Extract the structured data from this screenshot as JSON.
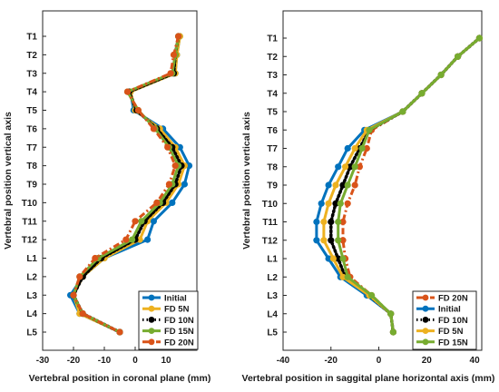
{
  "chart_data": [
    {
      "type": "line",
      "xlabel": "Vertebral position in coronal plane (mm)",
      "ylabel": "Vertebral position vertical axis",
      "xlim": [
        -30,
        20
      ],
      "xticks": [
        "-30",
        "-20",
        "-10",
        "0",
        "10"
      ],
      "categories": [
        "T1",
        "T2",
        "T3",
        "T4",
        "T5",
        "T6",
        "T7",
        "T8",
        "T9",
        "T10",
        "T11",
        "T12",
        "L1",
        "L2",
        "L3",
        "L4",
        "L5"
      ],
      "legend_position": "bottom-right",
      "series": [
        {
          "name": "Initial",
          "color": "#0072BD",
          "style": "solid",
          "values": [
            14.5,
            13.5,
            13,
            -1.5,
            -0.5,
            9,
            14.5,
            17.5,
            16,
            12,
            6,
            4,
            -10,
            -17,
            -21,
            -18,
            -5
          ]
        },
        {
          "name": "FD 5N",
          "color": "#EDB120",
          "style": "solid",
          "values": [
            14.5,
            13.5,
            13,
            -1.5,
            0,
            8,
            13,
            16,
            14,
            10,
            4,
            1.5,
            -10,
            -17,
            -20,
            -18,
            -5
          ]
        },
        {
          "name": "FD 10N",
          "color": "#000000",
          "style": "dotted",
          "values": [
            14,
            13,
            12.5,
            -2,
            0.5,
            7,
            12,
            15,
            13,
            9,
            3,
            0,
            -11,
            -17,
            -20,
            -17,
            -5
          ]
        },
        {
          "name": "FD 15N",
          "color": "#77AC30",
          "style": "solid",
          "values": [
            14,
            13,
            12,
            -2.5,
            1,
            6.5,
            11,
            14,
            12,
            8,
            2,
            -1,
            -12,
            -18,
            -20,
            -17,
            -5
          ]
        },
        {
          "name": "FD 20N",
          "color": "#D95319",
          "style": "dashdot",
          "values": [
            14,
            12.5,
            11.5,
            -2.5,
            1,
            6,
            10.5,
            13,
            11,
            7,
            0,
            -3,
            -13,
            -18,
            -20,
            -17,
            -5
          ]
        }
      ]
    },
    {
      "type": "line",
      "xlabel": "Vertebral position in saggital plane horizontal axis (mm)",
      "ylabel": "Vertebral position vertical axis",
      "xlim": [
        -40,
        43
      ],
      "xticks": [
        "-40",
        "-20",
        "0",
        "20",
        "40"
      ],
      "categories": [
        "T1",
        "T2",
        "T3",
        "T4",
        "T5",
        "T6",
        "T7",
        "T8",
        "T9",
        "T10",
        "T11",
        "T12",
        "L1",
        "L2",
        "L3",
        "L4",
        "L5"
      ],
      "legend_position": "bottom-right",
      "series": [
        {
          "name": "FD 20N",
          "color": "#D95319",
          "style": "dashdot",
          "values": [
            42,
            33,
            26,
            18,
            10,
            -3,
            -5,
            -8,
            -10,
            -13,
            -15,
            -15,
            -14,
            -12,
            -3,
            5,
            6
          ]
        },
        {
          "name": "Initial",
          "color": "#0072BD",
          "style": "solid",
          "values": [
            42,
            33,
            26,
            18,
            10,
            -6,
            -13,
            -17,
            -21,
            -24,
            -26,
            -26,
            -21,
            -16,
            -5,
            5,
            6
          ]
        },
        {
          "name": "FD 10N",
          "color": "#000000",
          "style": "dotted",
          "values": [
            42,
            33,
            26,
            18,
            10,
            -4,
            -8,
            -12,
            -15,
            -18,
            -20,
            -20,
            -17,
            -14,
            -4,
            5,
            6
          ]
        },
        {
          "name": "FD 5N",
          "color": "#EDB120",
          "style": "solid",
          "values": [
            42,
            33,
            26,
            18,
            10,
            -5,
            -10,
            -14,
            -18,
            -21,
            -23,
            -23,
            -19,
            -15,
            -4,
            5,
            6
          ]
        },
        {
          "name": "FD 15N",
          "color": "#77AC30",
          "style": "solid",
          "values": [
            42,
            33,
            26,
            18,
            10,
            -4,
            -7,
            -10,
            -13,
            -16,
            -17,
            -17,
            -15,
            -13,
            -3,
            5,
            6
          ]
        }
      ]
    }
  ]
}
